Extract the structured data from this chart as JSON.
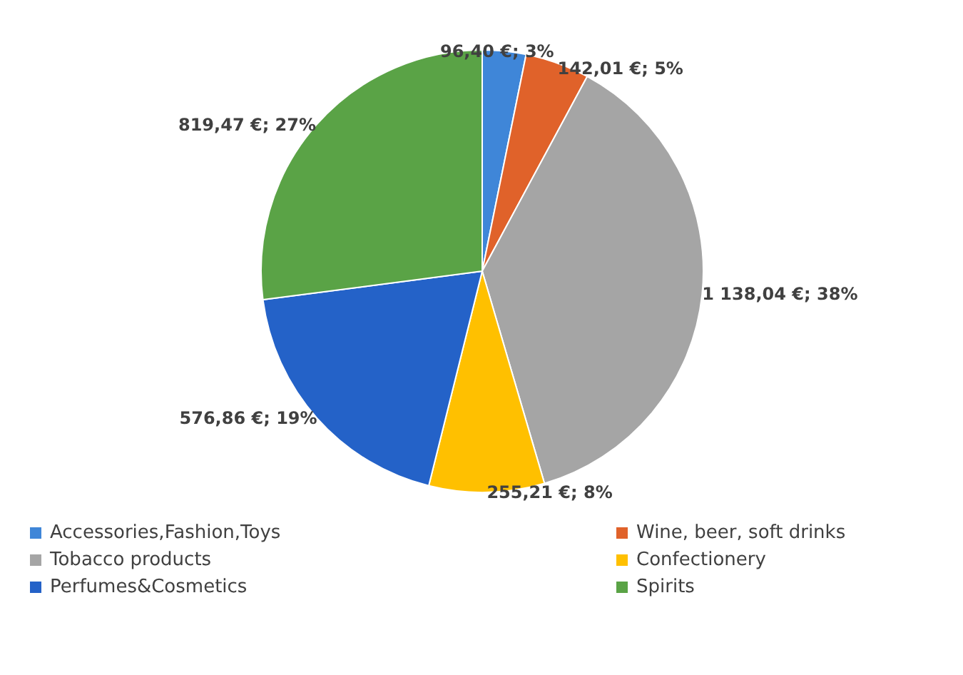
{
  "chart_data": {
    "type": "pie",
    "categories": [
      "Accessories,Fashion,Toys",
      "Wine, beer, soft drinks",
      "Tobacco products",
      "Confectionery",
      "Perfumes&Cosmetics",
      "Spirits"
    ],
    "values": [
      96.4,
      142.01,
      1138.04,
      255.21,
      576.86,
      819.47
    ],
    "value_labels": [
      "96,40 €; 3%",
      "142,01 €; 5%",
      "1 138,04 €; 38%",
      "255,21 €; 8%",
      "576,86 €; 19%",
      "819,47 €; 27%"
    ],
    "colors": [
      "#3f86d8",
      "#e0622a",
      "#a5a5a5",
      "#ffc000",
      "#2462c8",
      "#5aa346"
    ],
    "legend": "bottom"
  }
}
